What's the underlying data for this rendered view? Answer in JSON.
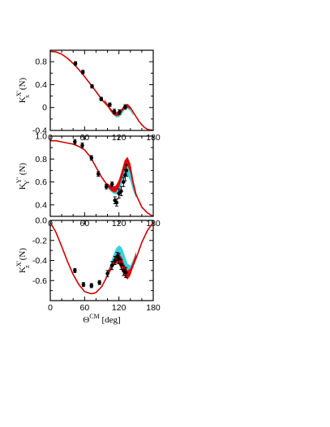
{
  "chart_data": [
    {
      "type": "line",
      "ylabel": "K_x^{X'} (N)",
      "ylabel_parts": {
        "main": "K",
        "sub": "x",
        "sup": "X'",
        "suffix": "(N)"
      },
      "xlim": [
        0,
        180
      ],
      "ylim": [
        -0.4,
        1.0
      ],
      "xticks": [
        0,
        60,
        120,
        180
      ],
      "xtick_labels": [
        "0",
        "60",
        "120",
        "180"
      ],
      "yticks": [
        -0.4,
        0.0,
        0.4,
        0.8
      ],
      "ytick_labels": [
        "-0.4",
        "0",
        "0.4",
        "0.8"
      ],
      "grid": false,
      "bands": [
        {
          "color": "#34d3e0",
          "x": [
            95,
            100,
            105,
            110,
            115,
            120,
            125,
            130,
            135,
            140,
            145
          ],
          "lower": [
            0.12,
            0.03,
            -0.06,
            -0.13,
            -0.17,
            -0.17,
            -0.12,
            -0.04,
            -0.02,
            -0.06,
            -0.14
          ],
          "upper": [
            0.14,
            0.06,
            -0.02,
            -0.07,
            -0.09,
            -0.08,
            -0.04,
            0.02,
            0.03,
            -0.03,
            -0.11
          ]
        },
        {
          "color": "#e01010",
          "x": [
            95,
            100,
            105,
            110,
            115,
            120,
            125,
            130,
            135,
            140
          ],
          "lower": [
            0.11,
            0.02,
            -0.06,
            -0.12,
            -0.15,
            -0.14,
            -0.08,
            -0.01,
            0.0,
            -0.03
          ],
          "upper": [
            0.14,
            0.06,
            -0.01,
            -0.06,
            -0.08,
            -0.07,
            -0.02,
            0.04,
            0.04,
            0.0
          ]
        }
      ],
      "curve": {
        "color": "#d00000",
        "x": [
          0,
          10,
          20,
          30,
          40,
          50,
          60,
          70,
          80,
          90,
          100,
          110,
          115,
          120,
          125,
          130,
          135,
          140,
          145,
          150,
          155,
          160,
          165,
          170,
          180
        ],
        "y": [
          0.98,
          0.97,
          0.93,
          0.86,
          0.77,
          0.66,
          0.54,
          0.41,
          0.28,
          0.14,
          0.03,
          -0.08,
          -0.11,
          -0.1,
          -0.04,
          0.03,
          0.05,
          0.0,
          -0.08,
          -0.16,
          -0.24,
          -0.3,
          -0.35,
          -0.38,
          -0.4
        ]
      },
      "points": {
        "x": [
          44,
          57,
          73,
          89,
          104,
          112,
          121,
          131
        ],
        "y": [
          0.77,
          0.62,
          0.37,
          0.15,
          0.05,
          -0.07,
          -0.08,
          0.01
        ],
        "err": [
          0.03,
          0.03,
          0.03,
          0.03,
          0.03,
          0.04,
          0.04,
          0.04
        ]
      }
    },
    {
      "type": "line",
      "ylabel": "K_Y^{Y'} (N)",
      "ylabel_parts": {
        "main": "K",
        "sub": "Y",
        "sup": "Y'",
        "suffix": "(N)"
      },
      "xlim": [
        0,
        180
      ],
      "ylim": [
        0.3,
        1.0
      ],
      "xticks": [
        0,
        60,
        120,
        180
      ],
      "xtick_labels": [
        "0",
        "60",
        "120",
        "180"
      ],
      "yticks": [
        0.4,
        0.6,
        0.8,
        1.0
      ],
      "ytick_labels": [
        "0.4",
        "0.6",
        "0.8",
        "1.0"
      ],
      "grid": false,
      "bands": [
        {
          "color": "#34d3e0",
          "x": [
            100,
            105,
            110,
            115,
            120,
            125,
            130,
            135,
            140,
            145,
            150
          ],
          "lower": [
            0.55,
            0.52,
            0.5,
            0.49,
            0.52,
            0.58,
            0.64,
            0.66,
            0.61,
            0.52,
            0.46
          ],
          "upper": [
            0.59,
            0.56,
            0.55,
            0.56,
            0.6,
            0.67,
            0.72,
            0.74,
            0.69,
            0.57,
            0.49
          ]
        },
        {
          "color": "#e01010",
          "x": [
            100,
            105,
            110,
            115,
            120,
            125,
            130,
            135,
            140,
            145,
            150
          ],
          "lower": [
            0.56,
            0.53,
            0.51,
            0.51,
            0.55,
            0.63,
            0.71,
            0.74,
            0.68,
            0.56,
            0.47
          ],
          "upper": [
            0.59,
            0.57,
            0.56,
            0.57,
            0.62,
            0.7,
            0.79,
            0.82,
            0.76,
            0.62,
            0.51
          ]
        }
      ],
      "curve": {
        "color": "#d00000",
        "x": [
          0,
          10,
          20,
          30,
          40,
          50,
          60,
          70,
          80,
          90,
          100,
          105,
          110,
          115,
          120,
          125,
          130,
          135,
          140,
          145,
          150,
          160,
          170,
          180
        ],
        "y": [
          0.96,
          0.96,
          0.95,
          0.94,
          0.93,
          0.91,
          0.88,
          0.82,
          0.73,
          0.64,
          0.57,
          0.55,
          0.53,
          0.54,
          0.58,
          0.66,
          0.75,
          0.79,
          0.73,
          0.59,
          0.49,
          0.38,
          0.33,
          0.3
        ]
      },
      "points": {
        "x": [
          43,
          56,
          72,
          84,
          98,
          108,
          113,
          116,
          120,
          124,
          128,
          131,
          133
        ],
        "y": [
          0.95,
          0.92,
          0.81,
          0.67,
          0.56,
          0.58,
          0.44,
          0.42,
          0.5,
          0.52,
          0.6,
          0.66,
          0.7
        ],
        "err": [
          0.02,
          0.02,
          0.02,
          0.02,
          0.02,
          0.02,
          0.03,
          0.03,
          0.04,
          0.04,
          0.04,
          0.05,
          0.05
        ]
      }
    },
    {
      "type": "line",
      "ylabel": "K_z^{X'} (N)",
      "ylabel_parts": {
        "main": "K",
        "sub": "z",
        "sup": "X'",
        "suffix": "(N)"
      },
      "xlabel": "Θ^{CM} [deg]",
      "xlabel_parts": {
        "main": "Θ",
        "sup": "CM",
        "suffix": " [deg]"
      },
      "xlim": [
        0,
        180
      ],
      "ylim": [
        -0.8,
        0.0
      ],
      "xticks": [
        0,
        60,
        120,
        180
      ],
      "xtick_labels": [
        "0",
        "60",
        "120",
        "180"
      ],
      "yticks": [
        -0.6,
        -0.4,
        -0.2,
        0.0
      ],
      "ytick_labels": [
        "-0.6",
        "-0.4",
        "-0.2",
        "0.0"
      ],
      "grid": false,
      "bands": [
        {
          "color": "#34d3e0",
          "x": [
            100,
            105,
            110,
            115,
            120,
            125,
            130,
            135,
            140,
            145,
            150
          ],
          "lower": [
            -0.56,
            -0.5,
            -0.44,
            -0.4,
            -0.38,
            -0.41,
            -0.47,
            -0.51,
            -0.49,
            -0.42,
            -0.34
          ],
          "upper": [
            -0.51,
            -0.44,
            -0.35,
            -0.28,
            -0.25,
            -0.27,
            -0.35,
            -0.43,
            -0.45,
            -0.39,
            -0.31
          ]
        },
        {
          "color": "#e01010",
          "x": [
            100,
            105,
            110,
            115,
            120,
            125,
            130,
            135,
            140,
            145,
            150
          ],
          "lower": [
            -0.56,
            -0.51,
            -0.46,
            -0.43,
            -0.44,
            -0.5,
            -0.56,
            -0.59,
            -0.55,
            -0.46,
            -0.36
          ],
          "upper": [
            -0.52,
            -0.46,
            -0.4,
            -0.35,
            -0.33,
            -0.37,
            -0.45,
            -0.5,
            -0.48,
            -0.41,
            -0.32
          ]
        }
      ],
      "curve": {
        "color": "#d00000",
        "x": [
          0,
          10,
          20,
          30,
          40,
          50,
          60,
          70,
          75,
          80,
          90,
          100,
          110,
          115,
          120,
          125,
          130,
          135,
          140,
          150,
          160,
          170,
          180
        ],
        "y": [
          -0.02,
          -0.12,
          -0.26,
          -0.41,
          -0.54,
          -0.64,
          -0.71,
          -0.73,
          -0.73,
          -0.72,
          -0.66,
          -0.55,
          -0.44,
          -0.39,
          -0.38,
          -0.43,
          -0.5,
          -0.55,
          -0.52,
          -0.38,
          -0.22,
          -0.1,
          -0.02
        ]
      },
      "points": {
        "x": [
          43,
          58,
          72,
          86,
          100,
          108,
          113,
          117,
          120,
          124,
          128,
          132
        ],
        "y": [
          -0.5,
          -0.64,
          -0.65,
          -0.62,
          -0.53,
          -0.45,
          -0.4,
          -0.36,
          -0.38,
          -0.44,
          -0.5,
          -0.52
        ],
        "err": [
          0.02,
          0.02,
          0.02,
          0.02,
          0.03,
          0.04,
          0.04,
          0.04,
          0.05,
          0.05,
          0.05,
          0.05
        ]
      }
    }
  ]
}
